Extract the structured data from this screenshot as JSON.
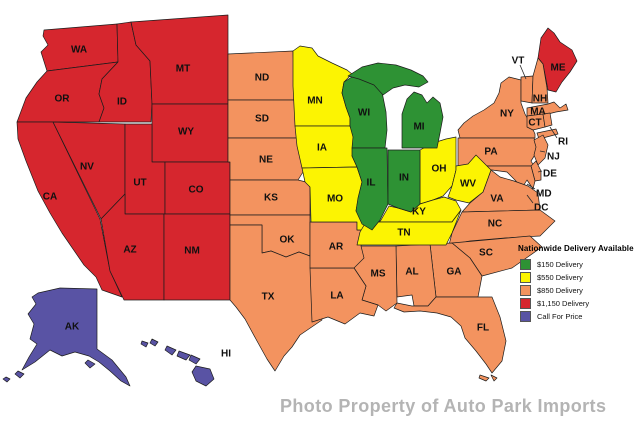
{
  "legend": {
    "title": "Nationwide Delivery Available",
    "items": [
      {
        "tier": "green",
        "color": "#2e9234",
        "label": "$150 Delivery"
      },
      {
        "tier": "yellow",
        "color": "#fcf402",
        "label": "$550 Delivery"
      },
      {
        "tier": "orange",
        "color": "#f3935f",
        "label": "$850 Delivery"
      },
      {
        "tier": "red",
        "color": "#d6262e",
        "label": "$1,150 Delivery"
      },
      {
        "tier": "purple",
        "color": "#5953a4",
        "label": "Call For Price"
      }
    ]
  },
  "states": [
    {
      "abbr": "WA",
      "tier": "red"
    },
    {
      "abbr": "OR",
      "tier": "red"
    },
    {
      "abbr": "CA",
      "tier": "red"
    },
    {
      "abbr": "ID",
      "tier": "red"
    },
    {
      "abbr": "NV",
      "tier": "red"
    },
    {
      "abbr": "MT",
      "tier": "red"
    },
    {
      "abbr": "WY",
      "tier": "red"
    },
    {
      "abbr": "UT",
      "tier": "red"
    },
    {
      "abbr": "CO",
      "tier": "red"
    },
    {
      "abbr": "AZ",
      "tier": "red"
    },
    {
      "abbr": "NM",
      "tier": "red"
    },
    {
      "abbr": "ME",
      "tier": "red"
    },
    {
      "abbr": "ND",
      "tier": "orange"
    },
    {
      "abbr": "SD",
      "tier": "orange"
    },
    {
      "abbr": "NE",
      "tier": "orange"
    },
    {
      "abbr": "KS",
      "tier": "orange"
    },
    {
      "abbr": "OK",
      "tier": "orange"
    },
    {
      "abbr": "TX",
      "tier": "orange"
    },
    {
      "abbr": "NY",
      "tier": "orange"
    },
    {
      "abbr": "PA",
      "tier": "orange"
    },
    {
      "abbr": "VT",
      "tier": "orange"
    },
    {
      "abbr": "NH",
      "tier": "orange"
    },
    {
      "abbr": "MA",
      "tier": "orange"
    },
    {
      "abbr": "CT",
      "tier": "orange"
    },
    {
      "abbr": "RI",
      "tier": "orange"
    },
    {
      "abbr": "NJ",
      "tier": "orange"
    },
    {
      "abbr": "DE",
      "tier": "orange"
    },
    {
      "abbr": "MD",
      "tier": "orange"
    },
    {
      "abbr": "DC",
      "tier": "orange"
    },
    {
      "abbr": "VA",
      "tier": "orange"
    },
    {
      "abbr": "NC",
      "tier": "orange"
    },
    {
      "abbr": "SC",
      "tier": "orange"
    },
    {
      "abbr": "GA",
      "tier": "orange"
    },
    {
      "abbr": "AL",
      "tier": "orange"
    },
    {
      "abbr": "MS",
      "tier": "orange"
    },
    {
      "abbr": "LA",
      "tier": "orange"
    },
    {
      "abbr": "AR",
      "tier": "orange"
    },
    {
      "abbr": "FL",
      "tier": "orange"
    },
    {
      "abbr": "MN",
      "tier": "yellow"
    },
    {
      "abbr": "IA",
      "tier": "yellow"
    },
    {
      "abbr": "MO",
      "tier": "yellow"
    },
    {
      "abbr": "OH",
      "tier": "yellow"
    },
    {
      "abbr": "KY",
      "tier": "yellow"
    },
    {
      "abbr": "TN",
      "tier": "yellow"
    },
    {
      "abbr": "WV",
      "tier": "yellow"
    },
    {
      "abbr": "WI",
      "tier": "green"
    },
    {
      "abbr": "MI",
      "tier": "green"
    },
    {
      "abbr": "IL",
      "tier": "green"
    },
    {
      "abbr": "IN",
      "tier": "green"
    },
    {
      "abbr": "AK",
      "tier": "purple"
    },
    {
      "abbr": "HI",
      "tier": "purple"
    }
  ],
  "watermark": {
    "text": "Photo Property of Auto Park Imports",
    "color": "#b4b4b4"
  }
}
